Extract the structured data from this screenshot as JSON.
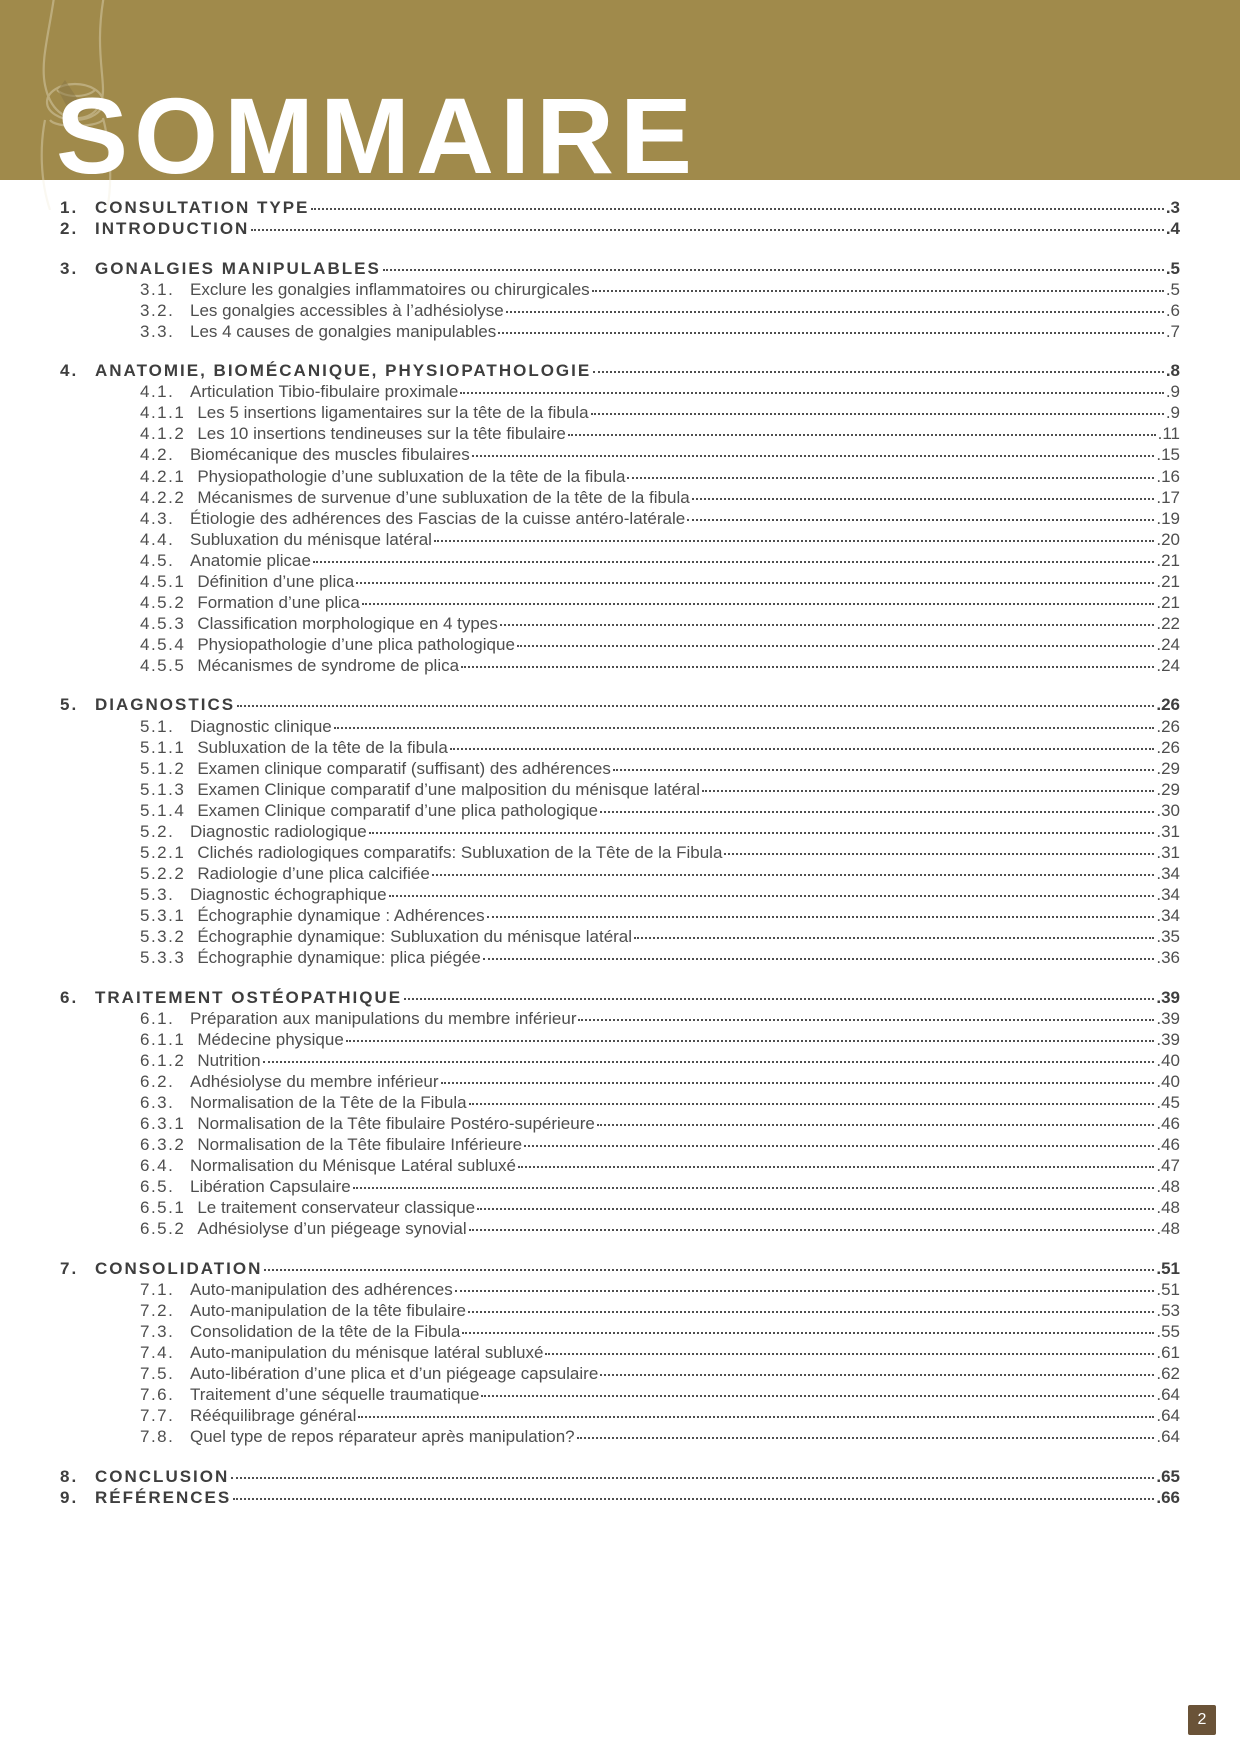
{
  "title": "SOMMAIRE",
  "page_number": "2",
  "colors": {
    "banner": "#a08a4b",
    "text": "#4e4e4e",
    "footer_bg": "#6a5338"
  },
  "toc": [
    {
      "num": "1.",
      "label": "CONSULTATION  TYPE",
      "page": "3",
      "level": 0
    },
    {
      "num": "2.",
      "label": "INTRODUCTION",
      "page": "4",
      "level": 0,
      "gap": true
    },
    {
      "num": "3.",
      "label": "GONALGIES  MANIPULABLES",
      "page": "5",
      "level": 0
    },
    {
      "num": "3.1.",
      "label": "Exclure  les  gonalgies  inflammatoires  ou  chirurgicales",
      "page": "5",
      "level": 1
    },
    {
      "num": "3.2.",
      "label": "Les gonalgies accessibles à l’adhésiolyse",
      "page": "6",
      "level": 1
    },
    {
      "num": "3.3.",
      "label": "Les 4 causes de gonalgies manipulables",
      "page": "7",
      "level": 1,
      "gap": true
    },
    {
      "num": "4.",
      "label": "ANATOMIE,  BIOMÉCANIQUE,  PHYSIOPATHOLOGIE",
      "page": "8",
      "level": 0
    },
    {
      "num": "4.1.",
      "label": "Articulation  Tibio-fibulaire  proximale",
      "page": "9",
      "level": 1
    },
    {
      "num": "4.1.1",
      "label": "Les 5 insertions ligamentaires sur la tête de la fibula",
      "page": "9",
      "level": 2
    },
    {
      "num": "4.1.2",
      "label": "Les  10  insertions  tendineuses  sur  la  tête  fibulaire",
      "page": "11",
      "level": 2
    },
    {
      "num": "4.2.",
      "label": "Biomécanique des muscles fibulaires",
      "page": "15",
      "level": 1
    },
    {
      "num": "4.2.1",
      "label": "Physiopathologie  d’une  subluxation  de  la  tête  de  la  fibula",
      "page": "16",
      "level": 2
    },
    {
      "num": "4.2.2",
      "label": "Mécanismes  de  survenue  d’une  subluxation  de  la  tête  de  la  fibula",
      "page": "17",
      "level": 2
    },
    {
      "num": "4.3.",
      "label": "Étiologie des adhérences des Fascias de la cuisse antéro-latérale",
      "page": "19",
      "level": 1
    },
    {
      "num": "4.4.",
      "label": "Subluxation du ménisque latéral",
      "page": "20",
      "level": 1
    },
    {
      "num": "4.5.",
      "label": "Anatomie  plicae",
      "page": "21",
      "level": 1
    },
    {
      "num": "4.5.1",
      "label": "Définition  d’une  plica",
      "page": "21",
      "level": 2
    },
    {
      "num": "4.5.2",
      "label": "Formation  d’une  plica",
      "page": "21",
      "level": 2
    },
    {
      "num": "4.5.3",
      "label": "Classification  morphologique  en  4  types",
      "page": "22",
      "level": 2
    },
    {
      "num": "4.5.4",
      "label": "Physiopathologie  d’une  plica  pathologique",
      "page": "24",
      "level": 2
    },
    {
      "num": "4.5.5",
      "label": "Mécanismes  de  syndrome  de  plica",
      "page": "24",
      "level": 2,
      "gap": true
    },
    {
      "num": "5.",
      "label": "DIAGNOSTICS",
      "page": "26",
      "level": 0,
      "prefix_space": false
    },
    {
      "num": "5.1.",
      "label": "Diagnostic  clinique",
      "page": "26",
      "level": 1
    },
    {
      "num": "5.1.1",
      "label": "Subluxation de la tête de la fibula",
      "page": "26",
      "level": 2
    },
    {
      "num": "5.1.2",
      "label": "Examen   clinique   comparatif   (suffisant)   des   adhérences",
      "page": "29",
      "level": 2
    },
    {
      "num": "5.1.3",
      "label": "Examen   Clinique comparatif  d’une malposition du ménisque latéral",
      "page": "29",
      "level": 2
    },
    {
      "num": "5.1.4",
      "label": "Examen Clinique comparatif d’une plica pathologique",
      "page": "30",
      "level": 2
    },
    {
      "num": "5.2.",
      "label": "Diagnostic  radiologique",
      "page": "31",
      "level": 1
    },
    {
      "num": "5.2.1",
      "label": "Clichés radiologiques comparatifs: Subluxation de la Tête de la Fibula",
      "page": "31",
      "level": 2
    },
    {
      "num": "5.2.2",
      "label": "Radiologie  d’une  plica  calcifiée",
      "page": "34",
      "level": 2
    },
    {
      "num": "5.3.",
      "label": "Diagnostic  échographique",
      "page": "34",
      "level": 1
    },
    {
      "num": "5.3.1",
      "label": "Échographie dynamique : Adhérences",
      "page": "34",
      "level": 2
    },
    {
      "num": "5.3.2",
      "label": "Échographie dynamique: Subluxation du ménisque latéral",
      "page": "35",
      "level": 2
    },
    {
      "num": "5.3.3",
      "label": "Échographie dynamique: plica piégée",
      "page": "36",
      "level": 2,
      "gap": true
    },
    {
      "num": "6.",
      "label": "TRAITEMENT OSTÉOPATHIQUE",
      "page": "39",
      "level": 0
    },
    {
      "num": "6.1.",
      "label": "Préparation aux manipulations du membre inférieur",
      "page": "39",
      "level": 1
    },
    {
      "num": "6.1.1",
      "label": "Médecine  physique",
      "page": "39",
      "level": 2
    },
    {
      "num": "6.1.2",
      "label": "Nutrition",
      "page": "40",
      "level": 2
    },
    {
      "num": "6.2.",
      "label": "Adhésiolyse du membre inférieur",
      "page": "40",
      "level": 1
    },
    {
      "num": "6.3.",
      "label": "Normalisation  de  la  Tête  de  la  Fibula",
      "page": "45",
      "level": 1
    },
    {
      "num": "6.3.1",
      "label": "Normalisation  de  la  Tête  fibulaire  Postéro-supérieure",
      "page": "46",
      "level": 2
    },
    {
      "num": "6.3.2",
      "label": "Normalisation de la Tête fibulaire Inférieure",
      "page": "46",
      "level": 2
    },
    {
      "num": "6.4.",
      "label": "Normalisation du Ménisque Latéral subluxé",
      "page": "47",
      "level": 1
    },
    {
      "num": "6.5.",
      "label": "Libération  Capsulaire",
      "page": "48",
      "level": 1
    },
    {
      "num": "6.5.1",
      "label": "Le traitement conservateur classique",
      "page": "48",
      "level": 2
    },
    {
      "num": "6.5.2",
      "label": "Adhésiolyse d’un piégeage synovial",
      "page": "48",
      "level": 2,
      "gap": true
    },
    {
      "num": "7.",
      "label": "CONSOLIDATION",
      "page": "51",
      "level": 0
    },
    {
      "num": "7.1.",
      "label": "Auto-manipulation  des  adhérences",
      "page": "51",
      "level": 1
    },
    {
      "num": "7.2.",
      "label": "Auto-manipulation  de  la  tête  fibulaire",
      "page": "53",
      "level": 1
    },
    {
      "num": "7.3.",
      "label": "Consolidation de la tête de la Fibula",
      "page": "55",
      "level": 1
    },
    {
      "num": "7.4.",
      "label": "Auto-manipulation du ménisque latéral subluxé",
      "page": "61",
      "level": 1
    },
    {
      "num": "7.5.",
      "label": "Auto-libération  d’une plica et d’un piégeage capsulaire",
      "page": "62",
      "level": 1
    },
    {
      "num": "7.6.",
      "label": "Traitement d’une séquelle traumatique",
      "page": "64",
      "level": 1
    },
    {
      "num": "7.7.",
      "label": "Rééquilibrage  général",
      "page": "64",
      "level": 1
    },
    {
      "num": "7.8.",
      "label": "Quel type de repos réparateur après manipulation?",
      "page": "64",
      "level": 1,
      "gap": true
    },
    {
      "num": "8.",
      "label": "CONCLUSION",
      "page": "65",
      "level": 0
    },
    {
      "num": "9.",
      "label": "RÉFÉRENCES",
      "page": "66",
      "level": 0
    }
  ]
}
